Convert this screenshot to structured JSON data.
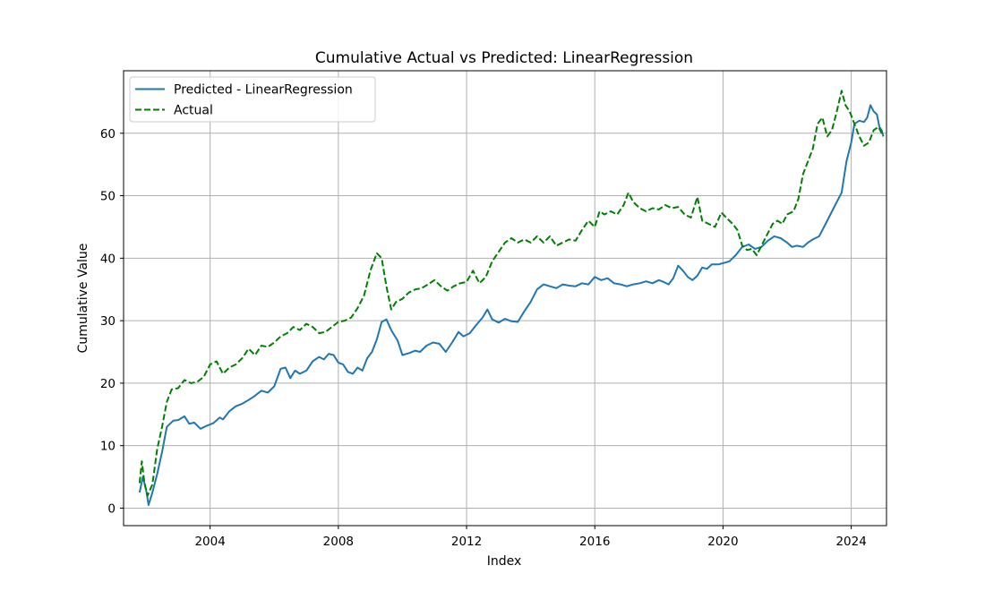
{
  "chart_data": {
    "type": "line",
    "title": "Cumulative Actual vs Predicted: LinearRegression",
    "xlabel": "Index",
    "ylabel": "Cumulative Value",
    "xlim": [
      2001.3,
      2025.1
    ],
    "ylim": [
      -2.8,
      70
    ],
    "x_ticks": [
      2004,
      2008,
      2012,
      2016,
      2020,
      2024
    ],
    "x_tick_labels": [
      "2004",
      "2008",
      "2012",
      "2016",
      "2020",
      "2024"
    ],
    "y_ticks": [
      0,
      10,
      20,
      30,
      40,
      50,
      60
    ],
    "y_tick_labels": [
      "0",
      "10",
      "20",
      "30",
      "40",
      "50",
      "60"
    ],
    "grid": true,
    "legend_position": "top-left",
    "series": [
      {
        "name": "Predicted - LinearRegression",
        "color": "#1f77b4",
        "style": "solid",
        "points": [
          [
            2001.8,
            2.5
          ],
          [
            2001.9,
            5.0
          ],
          [
            2002.0,
            3.0
          ],
          [
            2002.08,
            0.5
          ],
          [
            2002.2,
            2.5
          ],
          [
            2002.35,
            5.5
          ],
          [
            2002.5,
            9.0
          ],
          [
            2002.65,
            13.0
          ],
          [
            2002.85,
            14.0
          ],
          [
            2003.0,
            14.1
          ],
          [
            2003.2,
            14.7
          ],
          [
            2003.35,
            13.5
          ],
          [
            2003.5,
            13.7
          ],
          [
            2003.7,
            12.7
          ],
          [
            2003.9,
            13.2
          ],
          [
            2004.1,
            13.6
          ],
          [
            2004.3,
            14.5
          ],
          [
            2004.4,
            14.2
          ],
          [
            2004.6,
            15.5
          ],
          [
            2004.8,
            16.3
          ],
          [
            2005.0,
            16.7
          ],
          [
            2005.2,
            17.3
          ],
          [
            2005.4,
            18.0
          ],
          [
            2005.6,
            18.8
          ],
          [
            2005.8,
            18.5
          ],
          [
            2006.0,
            19.5
          ],
          [
            2006.2,
            22.3
          ],
          [
            2006.35,
            22.5
          ],
          [
            2006.5,
            20.8
          ],
          [
            2006.65,
            22.0
          ],
          [
            2006.8,
            21.5
          ],
          [
            2007.0,
            22.0
          ],
          [
            2007.2,
            23.5
          ],
          [
            2007.4,
            24.2
          ],
          [
            2007.55,
            23.8
          ],
          [
            2007.7,
            24.7
          ],
          [
            2007.85,
            24.5
          ],
          [
            2008.0,
            23.3
          ],
          [
            2008.15,
            23.0
          ],
          [
            2008.3,
            21.8
          ],
          [
            2008.45,
            21.5
          ],
          [
            2008.6,
            22.5
          ],
          [
            2008.75,
            22.0
          ],
          [
            2008.9,
            24.0
          ],
          [
            2009.05,
            25.0
          ],
          [
            2009.2,
            27.0
          ],
          [
            2009.35,
            29.8
          ],
          [
            2009.5,
            30.2
          ],
          [
            2009.65,
            28.5
          ],
          [
            2009.85,
            26.8
          ],
          [
            2010.0,
            24.5
          ],
          [
            2010.2,
            24.8
          ],
          [
            2010.4,
            25.2
          ],
          [
            2010.55,
            25.0
          ],
          [
            2010.75,
            26.0
          ],
          [
            2010.95,
            26.5
          ],
          [
            2011.15,
            26.3
          ],
          [
            2011.35,
            25.0
          ],
          [
            2011.55,
            26.5
          ],
          [
            2011.75,
            28.2
          ],
          [
            2011.9,
            27.5
          ],
          [
            2012.1,
            28.0
          ],
          [
            2012.3,
            29.3
          ],
          [
            2012.5,
            30.5
          ],
          [
            2012.65,
            31.8
          ],
          [
            2012.8,
            30.2
          ],
          [
            2013.0,
            29.7
          ],
          [
            2013.2,
            30.3
          ],
          [
            2013.4,
            29.9
          ],
          [
            2013.6,
            29.8
          ],
          [
            2013.8,
            31.5
          ],
          [
            2014.0,
            33.0
          ],
          [
            2014.2,
            35.0
          ],
          [
            2014.4,
            35.8
          ],
          [
            2014.6,
            35.5
          ],
          [
            2014.8,
            35.2
          ],
          [
            2015.0,
            35.8
          ],
          [
            2015.2,
            35.6
          ],
          [
            2015.4,
            35.5
          ],
          [
            2015.6,
            36.0
          ],
          [
            2015.8,
            35.8
          ],
          [
            2016.0,
            37.0
          ],
          [
            2016.2,
            36.5
          ],
          [
            2016.4,
            36.8
          ],
          [
            2016.6,
            36.0
          ],
          [
            2016.8,
            35.8
          ],
          [
            2017.0,
            35.5
          ],
          [
            2017.2,
            35.8
          ],
          [
            2017.4,
            36.0
          ],
          [
            2017.6,
            36.3
          ],
          [
            2017.8,
            36.0
          ],
          [
            2018.0,
            36.5
          ],
          [
            2018.15,
            36.2
          ],
          [
            2018.3,
            35.8
          ],
          [
            2018.45,
            36.8
          ],
          [
            2018.6,
            38.8
          ],
          [
            2018.75,
            38.0
          ],
          [
            2018.9,
            37.0
          ],
          [
            2019.05,
            36.5
          ],
          [
            2019.2,
            37.2
          ],
          [
            2019.35,
            38.5
          ],
          [
            2019.5,
            38.3
          ],
          [
            2019.65,
            39.0
          ],
          [
            2019.85,
            39.0
          ],
          [
            2020.0,
            39.2
          ],
          [
            2020.2,
            39.5
          ],
          [
            2020.4,
            40.5
          ],
          [
            2020.6,
            41.8
          ],
          [
            2020.8,
            42.2
          ],
          [
            2021.0,
            41.5
          ],
          [
            2021.2,
            41.8
          ],
          [
            2021.4,
            42.8
          ],
          [
            2021.6,
            43.5
          ],
          [
            2021.8,
            43.2
          ],
          [
            2022.0,
            42.5
          ],
          [
            2022.15,
            41.8
          ],
          [
            2022.3,
            42.0
          ],
          [
            2022.5,
            41.8
          ],
          [
            2022.65,
            42.5
          ],
          [
            2022.8,
            43.0
          ],
          [
            2023.0,
            43.5
          ],
          [
            2023.15,
            45.0
          ],
          [
            2023.3,
            46.5
          ],
          [
            2023.5,
            48.5
          ],
          [
            2023.7,
            50.5
          ],
          [
            2023.85,
            55.5
          ],
          [
            2024.0,
            58.5
          ],
          [
            2024.1,
            61.5
          ],
          [
            2024.25,
            62.0
          ],
          [
            2024.4,
            61.8
          ],
          [
            2024.5,
            62.5
          ],
          [
            2024.6,
            64.5
          ],
          [
            2024.7,
            63.5
          ],
          [
            2024.8,
            63.0
          ],
          [
            2024.88,
            61.0
          ],
          [
            2024.95,
            60.5
          ],
          [
            2025.0,
            59.5
          ]
        ]
      },
      {
        "name": "Actual",
        "color": "#008000",
        "style": "dashed",
        "points": [
          [
            2001.8,
            4.0
          ],
          [
            2001.87,
            7.5
          ],
          [
            2001.95,
            4.0
          ],
          [
            2002.05,
            2.0
          ],
          [
            2002.2,
            3.8
          ],
          [
            2002.35,
            9.5
          ],
          [
            2002.5,
            13.0
          ],
          [
            2002.65,
            17.0
          ],
          [
            2002.8,
            19.0
          ],
          [
            2003.0,
            19.2
          ],
          [
            2003.2,
            20.5
          ],
          [
            2003.4,
            20.0
          ],
          [
            2003.6,
            20.2
          ],
          [
            2003.8,
            21.0
          ],
          [
            2004.0,
            23.0
          ],
          [
            2004.2,
            23.5
          ],
          [
            2004.4,
            21.5
          ],
          [
            2004.6,
            22.5
          ],
          [
            2004.8,
            23.0
          ],
          [
            2005.0,
            24.0
          ],
          [
            2005.2,
            25.5
          ],
          [
            2005.4,
            24.5
          ],
          [
            2005.6,
            26.0
          ],
          [
            2005.8,
            25.8
          ],
          [
            2006.0,
            26.5
          ],
          [
            2006.2,
            27.5
          ],
          [
            2006.4,
            28.0
          ],
          [
            2006.6,
            29.0
          ],
          [
            2006.8,
            28.5
          ],
          [
            2007.0,
            29.5
          ],
          [
            2007.2,
            29.0
          ],
          [
            2007.4,
            28.0
          ],
          [
            2007.6,
            28.2
          ],
          [
            2007.8,
            29.0
          ],
          [
            2008.0,
            29.8
          ],
          [
            2008.2,
            30.0
          ],
          [
            2008.4,
            30.5
          ],
          [
            2008.6,
            32.0
          ],
          [
            2008.8,
            34.0
          ],
          [
            2009.0,
            38.0
          ],
          [
            2009.2,
            40.8
          ],
          [
            2009.35,
            40.0
          ],
          [
            2009.5,
            35.5
          ],
          [
            2009.65,
            31.8
          ],
          [
            2009.8,
            33.0
          ],
          [
            2010.0,
            33.5
          ],
          [
            2010.2,
            34.5
          ],
          [
            2010.4,
            35.0
          ],
          [
            2010.6,
            35.2
          ],
          [
            2010.8,
            35.8
          ],
          [
            2011.0,
            36.5
          ],
          [
            2011.2,
            35.5
          ],
          [
            2011.4,
            34.8
          ],
          [
            2011.6,
            35.5
          ],
          [
            2011.8,
            36.0
          ],
          [
            2012.0,
            36.2
          ],
          [
            2012.2,
            38.0
          ],
          [
            2012.4,
            36.0
          ],
          [
            2012.6,
            37.0
          ],
          [
            2012.8,
            39.5
          ],
          [
            2013.0,
            41.0
          ],
          [
            2013.2,
            42.5
          ],
          [
            2013.4,
            43.2
          ],
          [
            2013.6,
            42.5
          ],
          [
            2013.8,
            43.0
          ],
          [
            2014.0,
            42.5
          ],
          [
            2014.2,
            43.5
          ],
          [
            2014.4,
            42.5
          ],
          [
            2014.6,
            43.5
          ],
          [
            2014.8,
            42.0
          ],
          [
            2015.0,
            42.5
          ],
          [
            2015.2,
            43.0
          ],
          [
            2015.4,
            42.8
          ],
          [
            2015.6,
            44.5
          ],
          [
            2015.8,
            46.0
          ],
          [
            2016.0,
            45.0
          ],
          [
            2016.15,
            47.5
          ],
          [
            2016.3,
            47.0
          ],
          [
            2016.5,
            47.5
          ],
          [
            2016.7,
            47.0
          ],
          [
            2016.9,
            48.5
          ],
          [
            2017.05,
            50.5
          ],
          [
            2017.2,
            49.0
          ],
          [
            2017.4,
            48.0
          ],
          [
            2017.6,
            47.5
          ],
          [
            2017.8,
            48.0
          ],
          [
            2018.0,
            47.8
          ],
          [
            2018.2,
            48.5
          ],
          [
            2018.4,
            48.0
          ],
          [
            2018.6,
            48.2
          ],
          [
            2018.8,
            47.0
          ],
          [
            2019.0,
            46.5
          ],
          [
            2019.2,
            49.8
          ],
          [
            2019.35,
            46.0
          ],
          [
            2019.55,
            45.5
          ],
          [
            2019.75,
            45.0
          ],
          [
            2019.95,
            47.3
          ],
          [
            2020.1,
            46.5
          ],
          [
            2020.3,
            45.5
          ],
          [
            2020.45,
            44.5
          ],
          [
            2020.6,
            42.0
          ],
          [
            2020.75,
            41.3
          ],
          [
            2020.9,
            41.5
          ],
          [
            2021.05,
            40.5
          ],
          [
            2021.2,
            42.0
          ],
          [
            2021.4,
            44.0
          ],
          [
            2021.55,
            45.5
          ],
          [
            2021.7,
            46.0
          ],
          [
            2021.85,
            45.5
          ],
          [
            2022.0,
            47.0
          ],
          [
            2022.2,
            47.5
          ],
          [
            2022.35,
            49.5
          ],
          [
            2022.5,
            53.5
          ],
          [
            2022.65,
            55.5
          ],
          [
            2022.8,
            57.5
          ],
          [
            2022.95,
            61.5
          ],
          [
            2023.1,
            62.5
          ],
          [
            2023.25,
            59.5
          ],
          [
            2023.4,
            60.5
          ],
          [
            2023.55,
            63.5
          ],
          [
            2023.7,
            66.8
          ],
          [
            2023.82,
            64.5
          ],
          [
            2023.95,
            63.5
          ],
          [
            2024.1,
            61.5
          ],
          [
            2024.25,
            59.5
          ],
          [
            2024.4,
            58.0
          ],
          [
            2024.55,
            58.5
          ],
          [
            2024.7,
            60.5
          ],
          [
            2024.85,
            61.0
          ],
          [
            2025.0,
            59.5
          ]
        ]
      }
    ]
  }
}
